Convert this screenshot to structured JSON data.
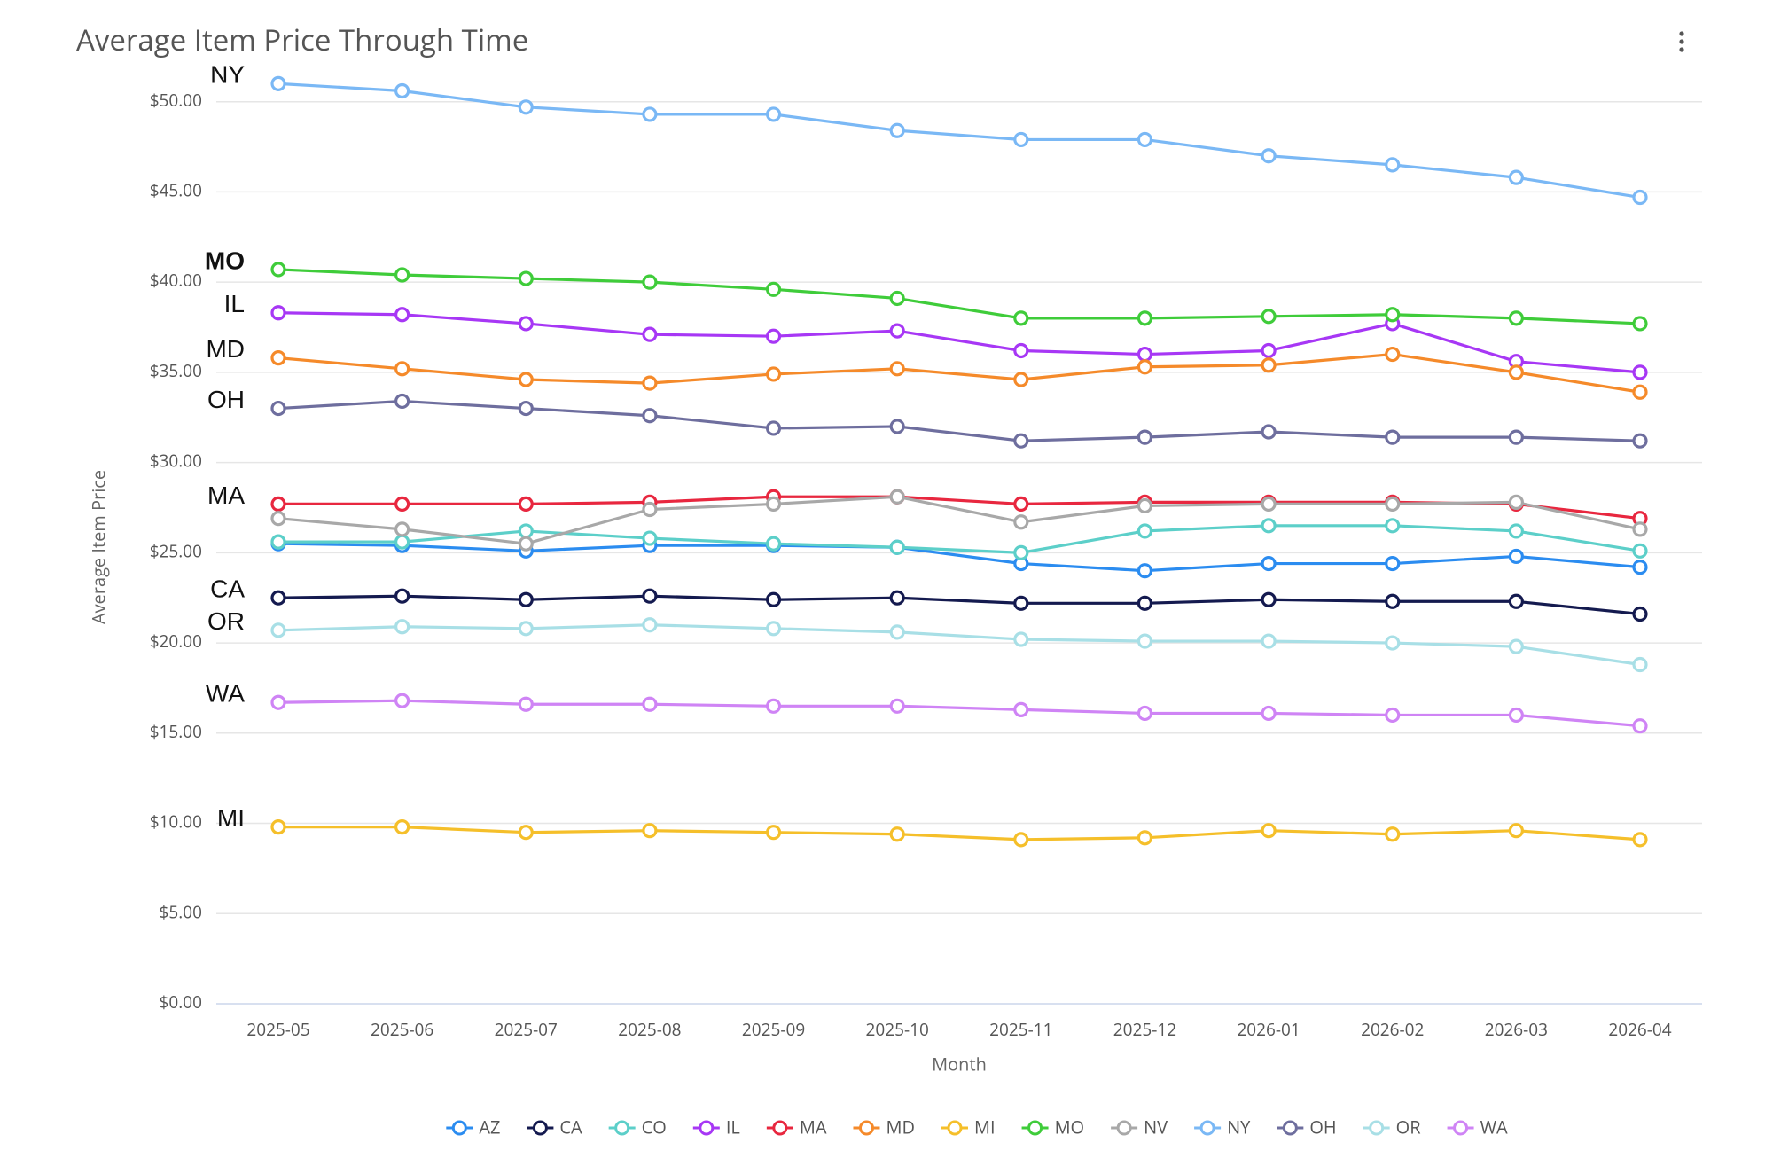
{
  "chart_data": {
    "type": "line",
    "title": "Average Item Price Through Time",
    "x_label": "Month",
    "y_label": "Average Item Price",
    "x": [
      "2025-05",
      "2025-06",
      "2025-07",
      "2025-08",
      "2025-09",
      "2025-10",
      "2025-11",
      "2025-12",
      "2026-01",
      "2026-02",
      "2026-03",
      "2026-04"
    ],
    "ylim": [
      0,
      52
    ],
    "yticks": [
      {
        "value": 0,
        "label": "$0.00"
      },
      {
        "value": 5,
        "label": "$5.00"
      },
      {
        "value": 10,
        "label": "$10.00"
      },
      {
        "value": 15,
        "label": "$15.00"
      },
      {
        "value": 20,
        "label": "$20.00"
      },
      {
        "value": 25,
        "label": "$25.00"
      },
      {
        "value": 30,
        "label": "$30.00"
      },
      {
        "value": 35,
        "label": "$35.00"
      },
      {
        "value": 40,
        "label": "$40.00"
      },
      {
        "value": 45,
        "label": "$45.00"
      },
      {
        "value": 50,
        "label": "$50.00"
      }
    ],
    "grid": true,
    "legend": "bottom",
    "series": [
      {
        "name": "AZ",
        "color": "#2b8cf0",
        "values": [
          25.5,
          25.4,
          25.1,
          25.4,
          25.4,
          25.3,
          24.4,
          24.0,
          24.4,
          24.4,
          24.8,
          24.2
        ]
      },
      {
        "name": "CA",
        "color": "#141a4f",
        "values": [
          22.5,
          22.6,
          22.4,
          22.6,
          22.4,
          22.5,
          22.2,
          22.2,
          22.4,
          22.3,
          22.3,
          21.6
        ]
      },
      {
        "name": "CO",
        "color": "#5ccfc9",
        "values": [
          25.6,
          25.6,
          26.2,
          25.8,
          25.5,
          25.3,
          25.0,
          26.2,
          26.5,
          26.5,
          26.2,
          25.1
        ]
      },
      {
        "name": "IL",
        "color": "#a737f5",
        "values": [
          38.3,
          38.2,
          37.7,
          37.1,
          37.0,
          37.3,
          36.2,
          36.0,
          36.2,
          37.7,
          35.6,
          35.0
        ]
      },
      {
        "name": "MA",
        "color": "#e8273f",
        "values": [
          27.7,
          27.7,
          27.7,
          27.8,
          28.1,
          28.1,
          27.7,
          27.8,
          27.8,
          27.8,
          27.7,
          26.9
        ]
      },
      {
        "name": "MD",
        "color": "#f58a2a",
        "values": [
          35.8,
          35.2,
          34.6,
          34.4,
          34.9,
          35.2,
          34.6,
          35.3,
          35.4,
          36.0,
          35.0,
          33.9
        ]
      },
      {
        "name": "MI",
        "color": "#f5bf2a",
        "values": [
          9.8,
          9.8,
          9.5,
          9.6,
          9.5,
          9.4,
          9.1,
          9.2,
          9.6,
          9.4,
          9.6,
          9.1
        ]
      },
      {
        "name": "MO",
        "color": "#3fcc3a",
        "values": [
          40.7,
          40.4,
          40.2,
          40.0,
          39.6,
          39.1,
          38.0,
          38.0,
          38.1,
          38.2,
          38.0,
          37.7
        ]
      },
      {
        "name": "NV",
        "color": "#a8a8a8",
        "values": [
          26.9,
          26.3,
          25.5,
          27.4,
          27.7,
          28.1,
          26.7,
          27.6,
          27.7,
          27.7,
          27.8,
          26.3
        ]
      },
      {
        "name": "NY",
        "color": "#7ab8f5",
        "values": [
          51.0,
          50.6,
          49.7,
          49.3,
          49.3,
          48.4,
          47.9,
          47.9,
          47.0,
          46.5,
          45.8,
          44.7
        ]
      },
      {
        "name": "OH",
        "color": "#6e6e9e",
        "values": [
          33.0,
          33.4,
          33.0,
          32.6,
          31.9,
          32.0,
          31.2,
          31.4,
          31.7,
          31.4,
          31.4,
          31.2
        ]
      },
      {
        "name": "OR",
        "color": "#a8dfe6",
        "values": [
          20.7,
          20.9,
          20.8,
          21.0,
          20.8,
          20.6,
          20.2,
          20.1,
          20.1,
          20.0,
          19.8,
          18.8
        ]
      },
      {
        "name": "WA",
        "color": "#cf84f5",
        "values": [
          16.7,
          16.8,
          16.6,
          16.6,
          16.5,
          16.5,
          16.3,
          16.1,
          16.1,
          16.0,
          16.0,
          15.4
        ]
      }
    ],
    "annotations": [
      "NY",
      "MO",
      "IL",
      "MD",
      "OH",
      "MA",
      "CA",
      "OR",
      "WA",
      "MI"
    ]
  }
}
